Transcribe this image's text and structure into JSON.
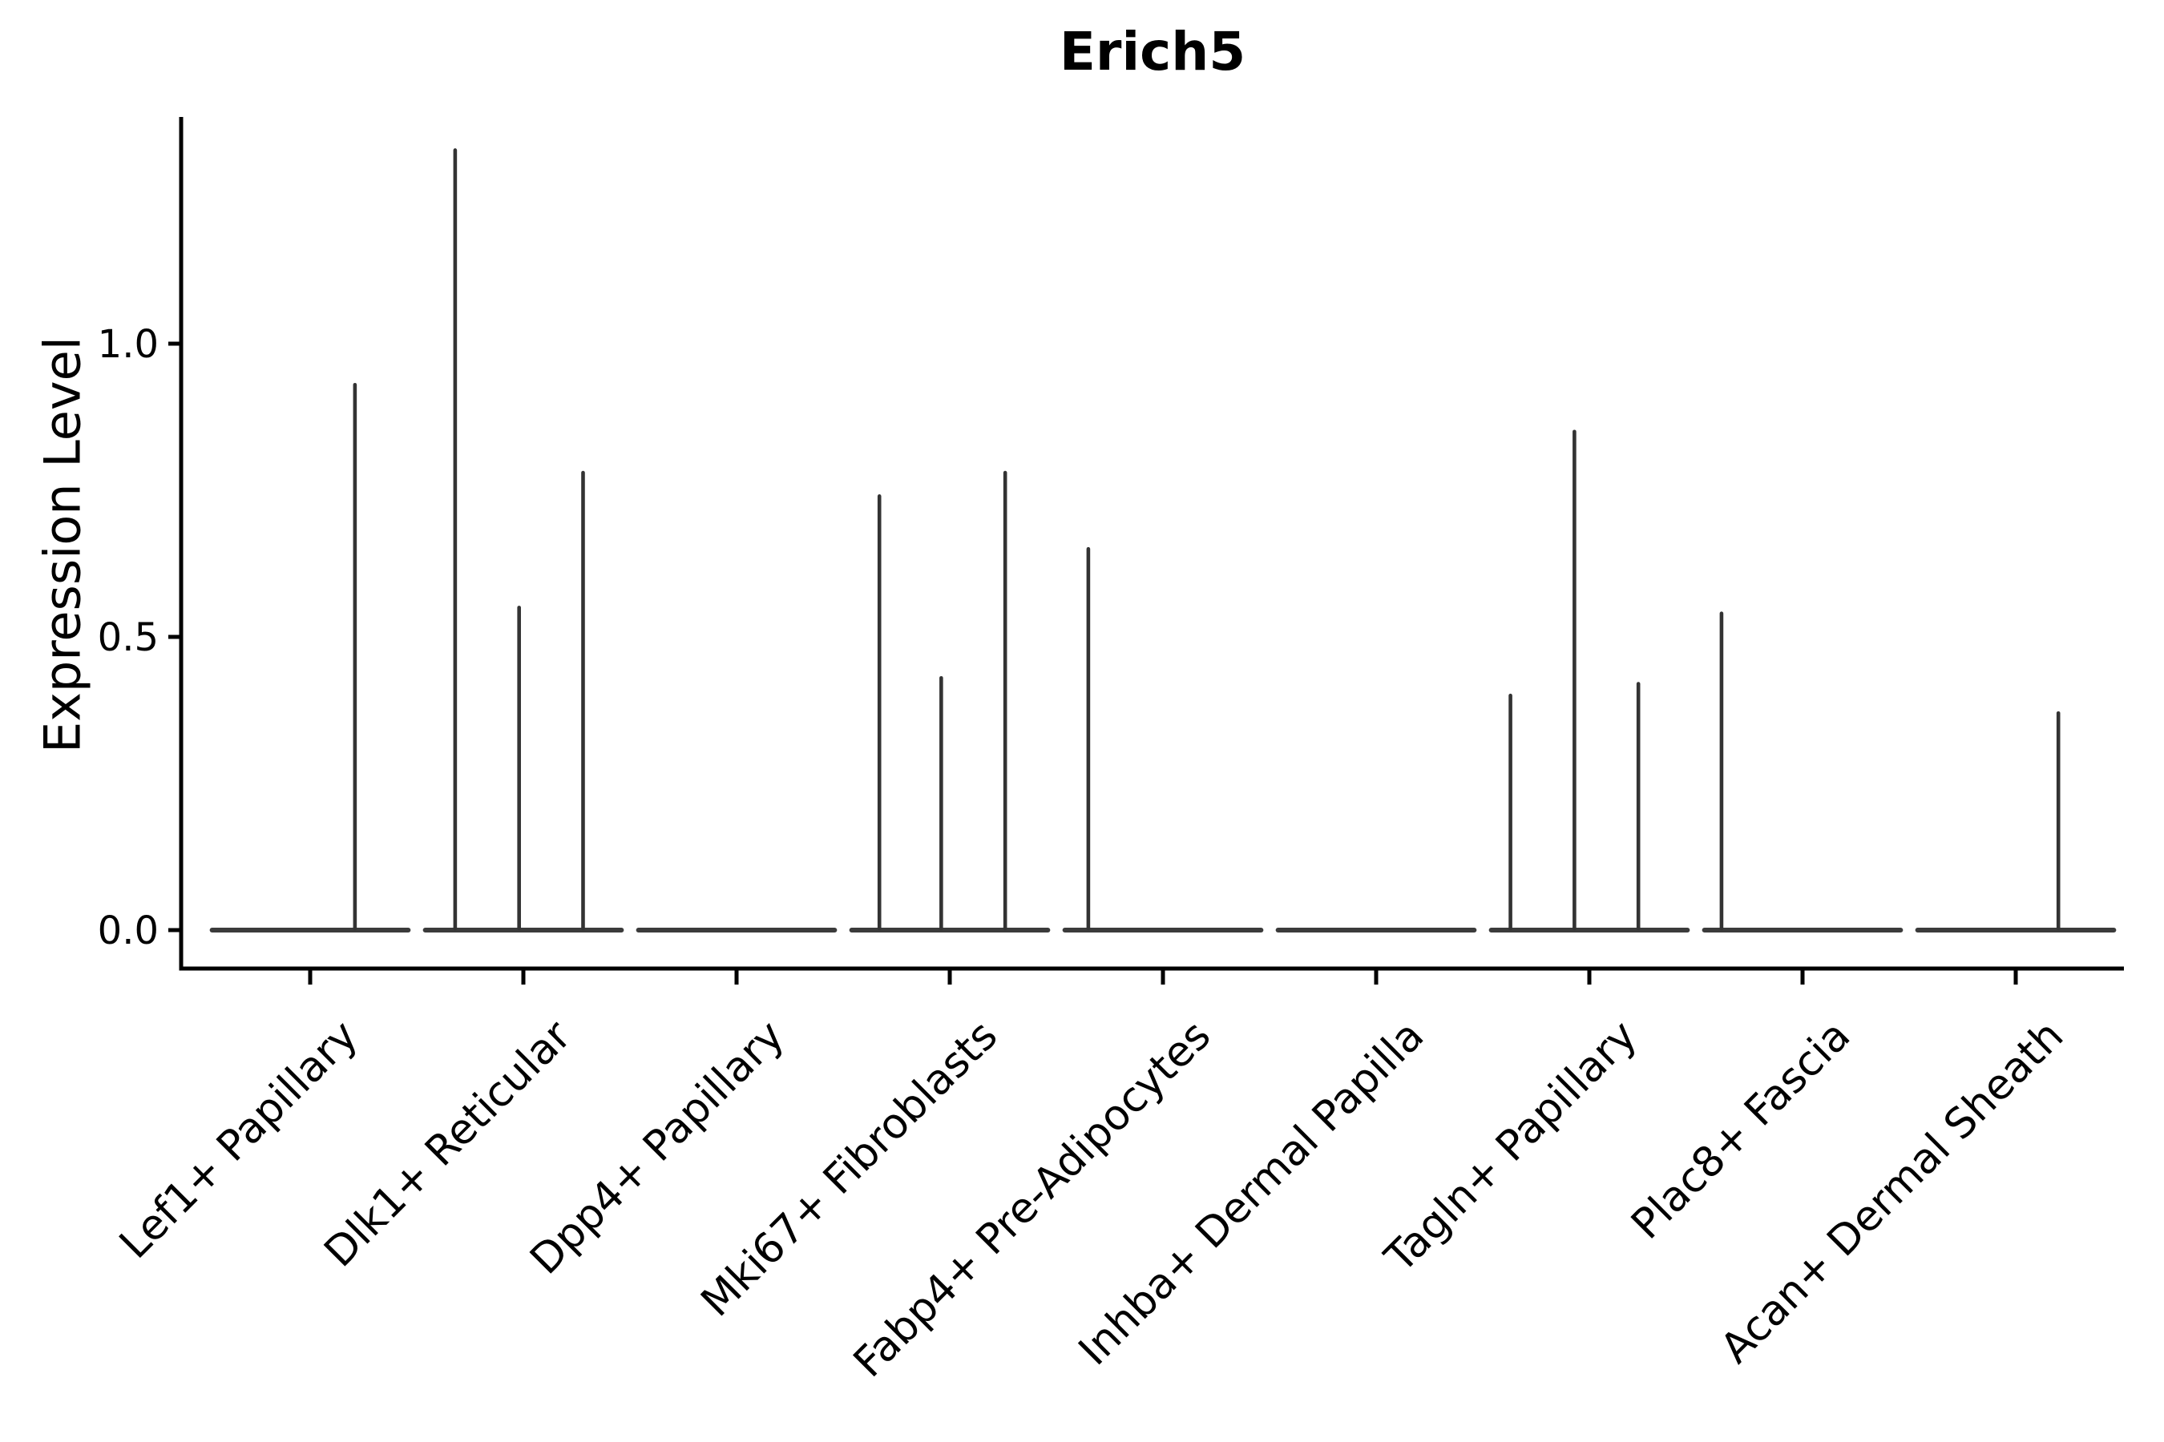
{
  "title": "Erich5",
  "ylabel": "Expression Level",
  "colors": {
    "axis": "#000000",
    "text": "#000000",
    "spike": "#333333",
    "violin_baseline": "#3b3b3b",
    "background": "#ffffff"
  },
  "chart_data": {
    "type": "violin",
    "title": "Erich5",
    "xlabel": "",
    "ylabel": "Expression Level",
    "ylim": [
      -0.07,
      1.38
    ],
    "grid": false,
    "legend": "none",
    "yticks": [
      {
        "label": "0.0",
        "value": 0.0
      },
      {
        "label": "0.5",
        "value": 0.5
      },
      {
        "label": "1.0",
        "value": 1.0
      }
    ],
    "categories": [
      "Lef1+ Papillary",
      "Dlk1+ Reticular",
      "Dpp4+ Papillary",
      "Mki67+ Fibroblasts",
      "Fabp4+ Pre-Adipocytes",
      "Inhba+ Dermal Papilla",
      "Tagln+ Papillary",
      "Plac8+ Fascia",
      "Acan+ Dermal Sheath"
    ],
    "violin_halfwidth_fraction": 0.46,
    "series": [
      {
        "category": "Lef1+ Papillary",
        "baseline_value": 0.0,
        "spikes": [
          {
            "x_offset": 0.21,
            "value": 0.93
          }
        ]
      },
      {
        "category": "Dlk1+ Reticular",
        "baseline_value": 0.0,
        "spikes": [
          {
            "x_offset": -0.32,
            "value": 1.33
          },
          {
            "x_offset": -0.02,
            "value": 0.55
          },
          {
            "x_offset": 0.28,
            "value": 0.78
          }
        ]
      },
      {
        "category": "Dpp4+ Papillary",
        "baseline_value": 0.0,
        "spikes": []
      },
      {
        "category": "Mki67+ Fibroblasts",
        "baseline_value": 0.0,
        "spikes": [
          {
            "x_offset": -0.33,
            "value": 0.74
          },
          {
            "x_offset": -0.04,
            "value": 0.43
          },
          {
            "x_offset": 0.26,
            "value": 0.78
          }
        ]
      },
      {
        "category": "Fabp4+ Pre-Adipocytes",
        "baseline_value": 0.0,
        "spikes": [
          {
            "x_offset": -0.35,
            "value": 0.65
          }
        ]
      },
      {
        "category": "Inhba+ Dermal Papilla",
        "baseline_value": 0.0,
        "spikes": []
      },
      {
        "category": "Tagln+ Papillary",
        "baseline_value": 0.0,
        "spikes": [
          {
            "x_offset": -0.37,
            "value": 0.4
          },
          {
            "x_offset": -0.07,
            "value": 0.85
          },
          {
            "x_offset": 0.23,
            "value": 0.42
          }
        ]
      },
      {
        "category": "Plac8+ Fascia",
        "baseline_value": 0.0,
        "spikes": [
          {
            "x_offset": -0.38,
            "value": 0.54
          }
        ]
      },
      {
        "category": "Acan+ Dermal Sheath",
        "baseline_value": 0.0,
        "spikes": [
          {
            "x_offset": 0.2,
            "value": 0.37
          }
        ]
      }
    ]
  }
}
